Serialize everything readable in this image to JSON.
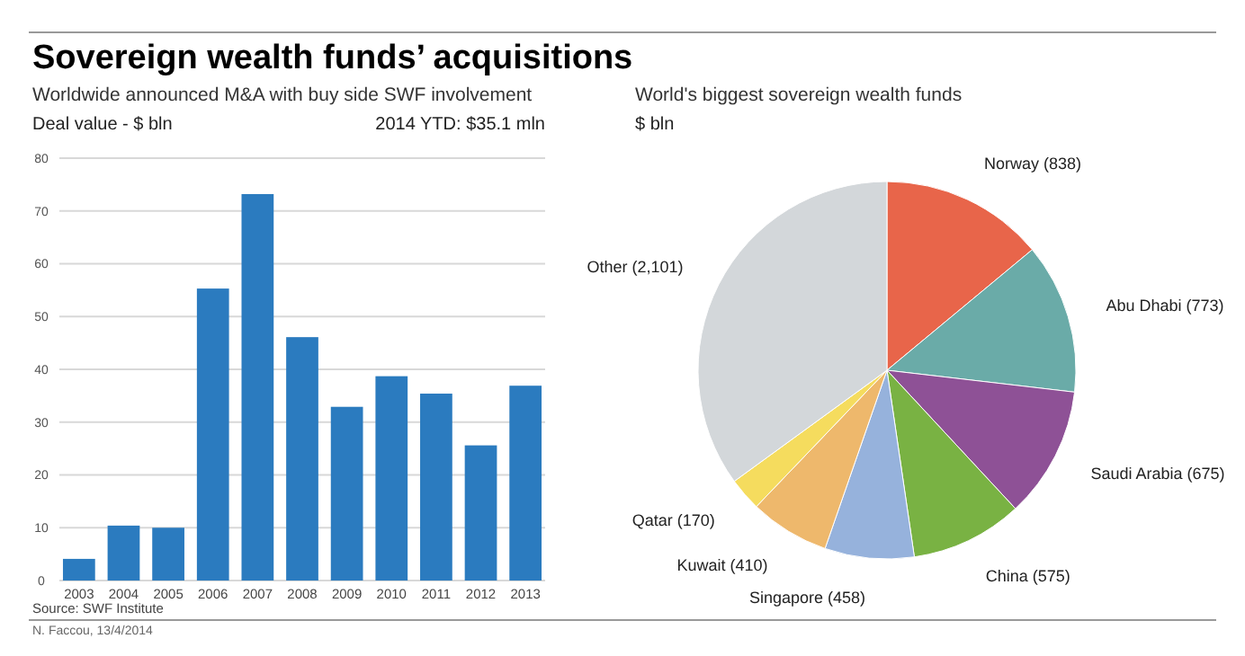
{
  "chart_data": [
    {
      "type": "bar",
      "title": "Sovereign wealth funds’ acquisitions",
      "subtitle": "Worldwide announced M&A with buy side SWF involvement",
      "ylabel": "Deal value - $ bln",
      "categories": [
        "2003",
        "2004",
        "2005",
        "2006",
        "2007",
        "2008",
        "2009",
        "2010",
        "2011",
        "2012",
        "2013"
      ],
      "values": [
        4.1,
        10.4,
        10.0,
        55.3,
        73.2,
        46.1,
        32.9,
        38.7,
        35.4,
        25.6,
        36.9
      ],
      "color": "#2b7bbf",
      "ylim": [
        0,
        80
      ],
      "yticks": [
        0,
        10,
        20,
        30,
        40,
        50,
        60,
        70,
        80
      ],
      "grid": "y",
      "annotations": [
        "2014 YTD: $35.1 mln",
        "Source: SWF Institute",
        "N. Faccou, 13/4/2014"
      ]
    },
    {
      "type": "pie",
      "title": "World's biggest sovereign wealth funds",
      "subtitle": "$ bln",
      "categories": [
        "Norway",
        "Abu Dhabi",
        "Saudi Arabia",
        "China",
        "Singapore",
        "Kuwait",
        "Qatar",
        "Other"
      ],
      "values": [
        838,
        773,
        675,
        575,
        458,
        410,
        170,
        2101
      ],
      "value_labels": [
        "(838)",
        "(773)",
        "(675)",
        "(575)",
        "(458)",
        "(410)",
        "(170)",
        "(2,101)"
      ],
      "colors": [
        "#e8654a",
        "#6aaba8",
        "#8e5196",
        "#79b243",
        "#96b2dc",
        "#eeb86c",
        "#f5dc5e",
        "#d3d7da"
      ]
    }
  ]
}
